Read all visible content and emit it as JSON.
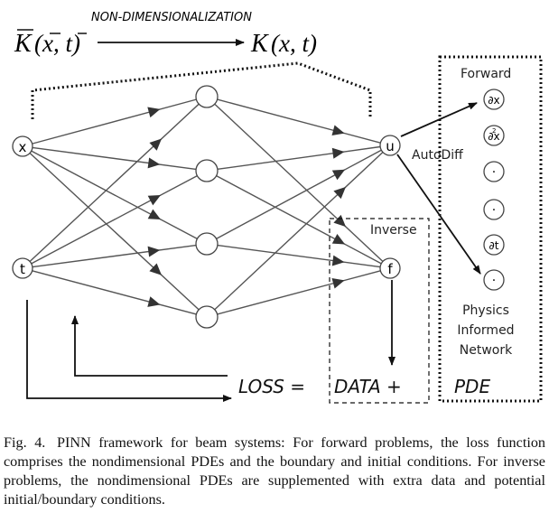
{
  "header": {
    "transform_label": "NON-DIMENSIONALIZATION",
    "source_symbol": "K",
    "source_args": "(x, t)",
    "target_symbol": "K",
    "target_args": "(x, t)"
  },
  "network": {
    "input_nodes": [
      "x",
      "t"
    ],
    "output_nodes": [
      "u",
      "f"
    ],
    "hidden_layer_1_count": 4
  },
  "labels": {
    "autodiff": "AutoDiff",
    "inverse": "Inverse",
    "forward": "Forward",
    "physics_line1": "Physics",
    "physics_line2": "Informed",
    "physics_line3": "Network"
  },
  "pde_nodes": [
    "∂x",
    "∂x",
    "·",
    "·",
    "∂t",
    "·"
  ],
  "loss_equation": {
    "loss": "LOSS =",
    "data": "DATA +",
    "pde": "PDE"
  },
  "caption": {
    "fig_number": "Fig. 4.",
    "text": "PINN framework for beam systems: For forward problems, the loss function comprises the nondimensional PDEs and the boundary and initial conditions. For inverse problems, the nondimensional PDEs are supplemented with extra data and potential initial/boundary conditions."
  }
}
